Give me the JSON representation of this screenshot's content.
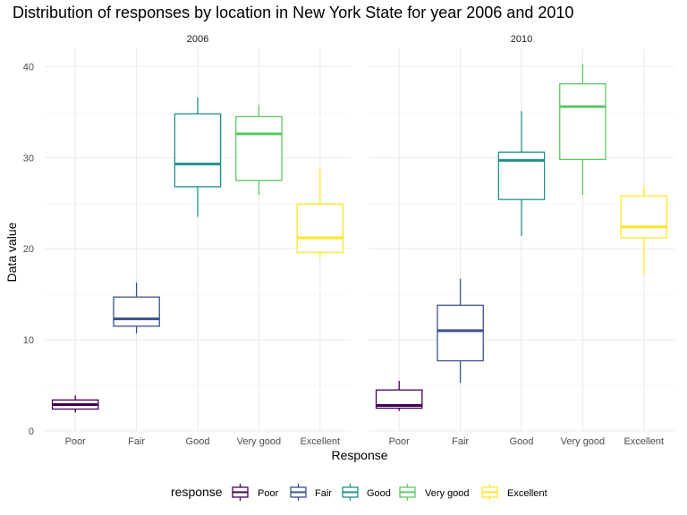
{
  "chart_data": {
    "type": "boxplot",
    "title": "Distribution of responses by location in New York State for year 2006 and 2010",
    "xlabel": "Response",
    "ylabel": "Data value",
    "ylim": [
      0,
      42
    ],
    "yticks": [
      0,
      10,
      20,
      30,
      40
    ],
    "categories": [
      "Poor",
      "Fair",
      "Good",
      "Very good",
      "Excellent"
    ],
    "legend": {
      "title": "response",
      "position": "bottom",
      "entries": [
        "Poor",
        "Fair",
        "Good",
        "Very good",
        "Excellent"
      ]
    },
    "colors": {
      "Poor": "#440154",
      "Fair": "#3b528b",
      "Good": "#21908c",
      "Very good": "#5dc863",
      "Excellent": "#fde725"
    },
    "grid": true,
    "panels": [
      {
        "label": "2006",
        "boxes": [
          {
            "category": "Poor",
            "min": 2.0,
            "q1": 2.4,
            "median": 2.9,
            "q3": 3.4,
            "max": 3.9
          },
          {
            "category": "Fair",
            "min": 10.7,
            "q1": 11.5,
            "median": 12.3,
            "q3": 14.7,
            "max": 16.3
          },
          {
            "category": "Good",
            "min": 23.5,
            "q1": 26.8,
            "median": 29.3,
            "q3": 34.8,
            "max": 36.6
          },
          {
            "category": "Very good",
            "min": 25.9,
            "q1": 27.5,
            "median": 32.6,
            "q3": 34.5,
            "max": 35.8
          },
          {
            "category": "Excellent",
            "min": 19.0,
            "q1": 19.6,
            "median": 21.2,
            "q3": 24.9,
            "max": 28.9
          }
        ]
      },
      {
        "label": "2010",
        "boxes": [
          {
            "category": "Poor",
            "min": 2.2,
            "q1": 2.5,
            "median": 2.8,
            "q3": 4.5,
            "max": 5.5
          },
          {
            "category": "Fair",
            "min": 5.3,
            "q1": 7.7,
            "median": 11.0,
            "q3": 13.8,
            "max": 16.7
          },
          {
            "category": "Good",
            "min": 21.4,
            "q1": 25.4,
            "median": 29.7,
            "q3": 30.6,
            "max": 35.1
          },
          {
            "category": "Very good",
            "min": 25.9,
            "q1": 29.8,
            "median": 35.6,
            "q3": 38.1,
            "max": 40.3
          },
          {
            "category": "Excellent",
            "min": 17.2,
            "q1": 21.2,
            "median": 22.4,
            "q3": 25.8,
            "max": 26.9
          }
        ]
      }
    ]
  }
}
